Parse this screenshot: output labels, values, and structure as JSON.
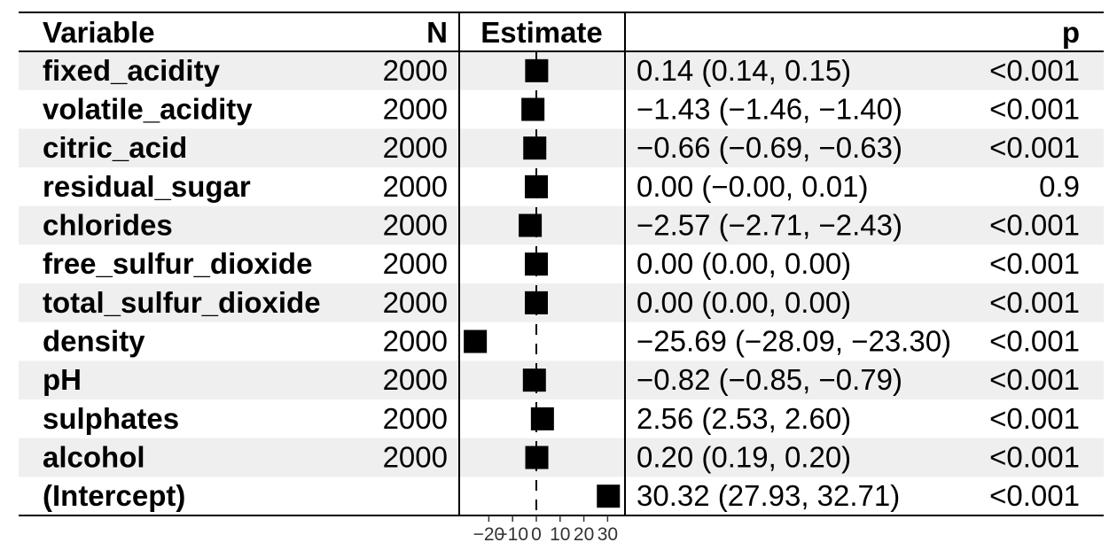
{
  "header": {
    "variable": "Variable",
    "n": "N",
    "estimate": "Estimate",
    "p": "p"
  },
  "colors": {
    "stripe": "#efefef",
    "box": "#000000"
  },
  "chart_data": {
    "type": "forest",
    "x_ticks": [
      -20,
      -10,
      0,
      10,
      20,
      30
    ],
    "x_tick_labels": [
      "−20",
      "−10",
      "0",
      "10",
      "20",
      "30"
    ],
    "reference_line": 0,
    "rows": [
      {
        "variable": "fixed_acidity",
        "n": "2000",
        "estimate": 0.14,
        "low": 0.14,
        "high": 0.15,
        "ci_text": "0.14 (0.14, 0.15)",
        "p": "<0.001"
      },
      {
        "variable": "volatile_acidity",
        "n": "2000",
        "estimate": -1.43,
        "low": -1.46,
        "high": -1.4,
        "ci_text": "−1.43 (−1.46, −1.40)",
        "p": "<0.001"
      },
      {
        "variable": "citric_acid",
        "n": "2000",
        "estimate": -0.66,
        "low": -0.69,
        "high": -0.63,
        "ci_text": "−0.66 (−0.69, −0.63)",
        "p": "<0.001"
      },
      {
        "variable": "residual_sugar",
        "n": "2000",
        "estimate": 0.0,
        "low": -0.0,
        "high": 0.01,
        "ci_text": "0.00 (−0.00, 0.01)",
        "p": "0.9"
      },
      {
        "variable": "chlorides",
        "n": "2000",
        "estimate": -2.57,
        "low": -2.71,
        "high": -2.43,
        "ci_text": "−2.57 (−2.71, −2.43)",
        "p": "<0.001"
      },
      {
        "variable": "free_sulfur_dioxide",
        "n": "2000",
        "estimate": 0.0,
        "low": 0.0,
        "high": 0.0,
        "ci_text": "0.00 (0.00, 0.00)",
        "p": "<0.001"
      },
      {
        "variable": "total_sulfur_dioxide",
        "n": "2000",
        "estimate": 0.0,
        "low": 0.0,
        "high": 0.0,
        "ci_text": "0.00 (0.00, 0.00)",
        "p": "<0.001"
      },
      {
        "variable": "density",
        "n": "2000",
        "estimate": -25.69,
        "low": -28.09,
        "high": -23.3,
        "ci_text": "−25.69 (−28.09, −23.30)",
        "p": "<0.001"
      },
      {
        "variable": "pH",
        "n": "2000",
        "estimate": -0.82,
        "low": -0.85,
        "high": -0.79,
        "ci_text": "−0.82 (−0.85, −0.79)",
        "p": "<0.001"
      },
      {
        "variable": "sulphates",
        "n": "2000",
        "estimate": 2.56,
        "low": 2.53,
        "high": 2.6,
        "ci_text": "2.56 (2.53, 2.60)",
        "p": "<0.001"
      },
      {
        "variable": "alcohol",
        "n": "2000",
        "estimate": 0.2,
        "low": 0.19,
        "high": 0.2,
        "ci_text": "0.20 (0.19, 0.20)",
        "p": "<0.001"
      },
      {
        "variable": "(Intercept)",
        "n": "",
        "estimate": 30.32,
        "low": 27.93,
        "high": 32.71,
        "ci_text": "30.32 (27.93, 32.71)",
        "p": "<0.001"
      }
    ]
  }
}
